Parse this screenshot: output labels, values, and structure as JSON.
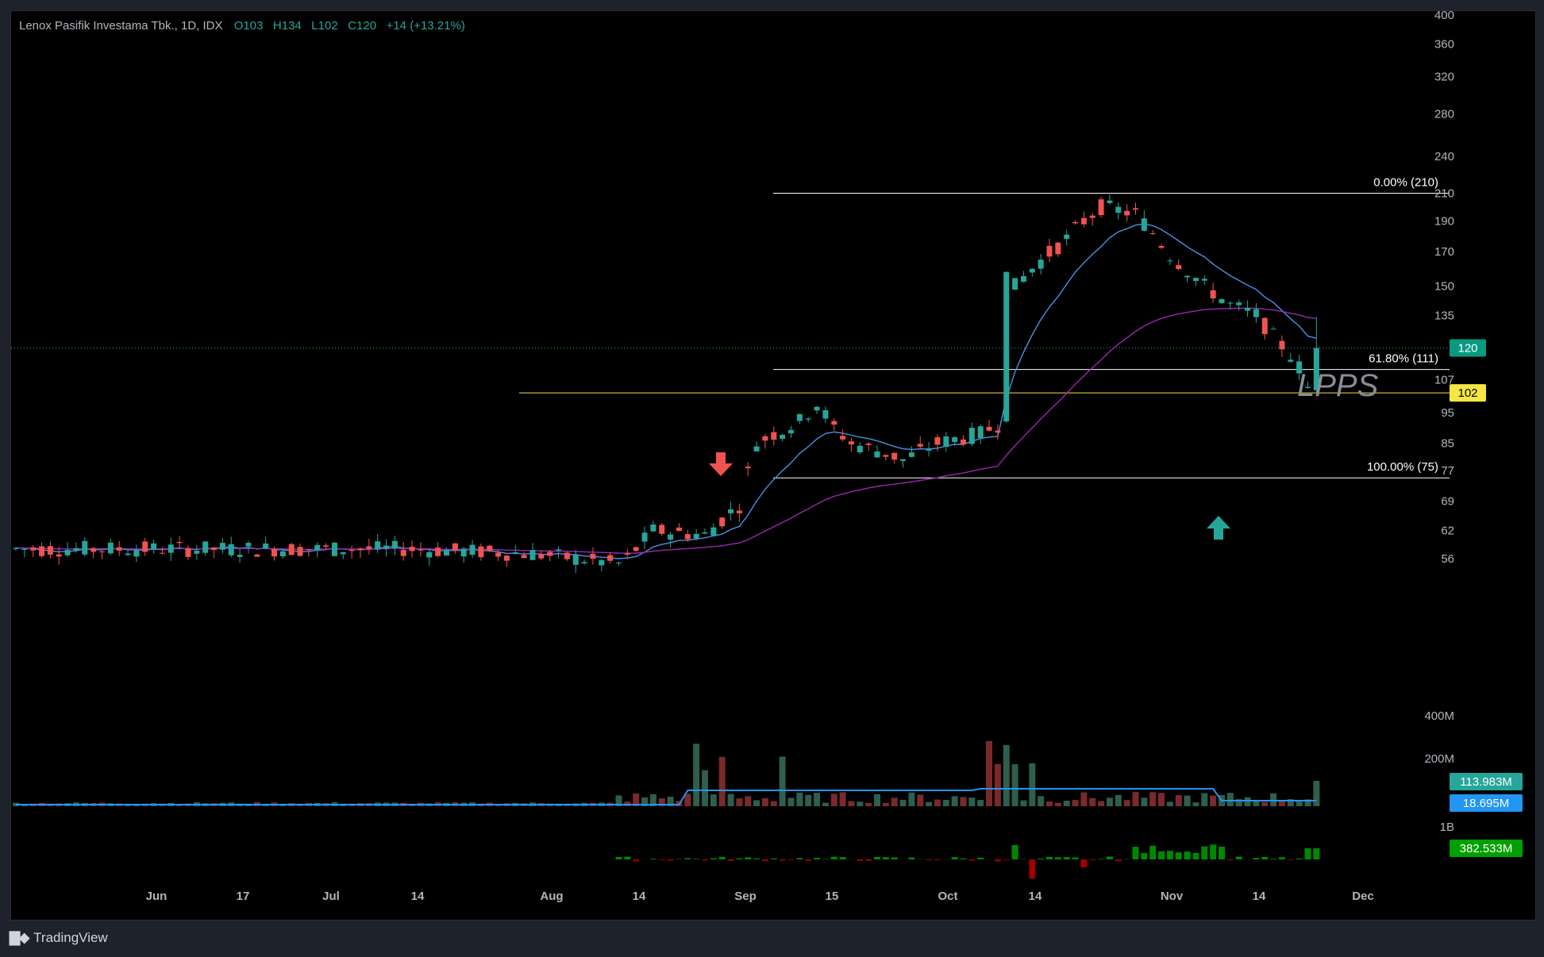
{
  "header": {
    "symbol": "Lenox Pasifik Investama Tbk., 1D, IDX",
    "open_label": "O",
    "open": "103",
    "high_label": "H",
    "high": "134",
    "low_label": "L",
    "low": "102",
    "close_label": "C",
    "close": "120",
    "change": "+14 (+13.21%)"
  },
  "footer": {
    "brand": "TradingView",
    "logo_icon": "tradingview-logo-icon"
  },
  "colors": {
    "up": "#26a69a",
    "down": "#ef5350",
    "ema_short": "#4a90e2",
    "ema_long": "#9c27b0",
    "support": "#c9b037",
    "fib": "#ffffff",
    "vol_up": "#2e5e4e",
    "vol_down": "#7a2a2a",
    "vol_ma": "#2196f3",
    "flow_up": "#008800",
    "flow_down": "#a00000"
  },
  "chart_data": {
    "type": "candlestick",
    "price_axis": {
      "scale": "log",
      "range": [
        50,
        400
      ],
      "ticks": [
        400,
        360,
        320,
        280,
        240,
        210,
        190,
        170,
        150,
        135,
        120,
        107,
        95,
        85,
        77,
        69,
        62,
        56
      ]
    },
    "x_axis": {
      "ticks": [
        "Jun",
        "17",
        "Jul",
        "14",
        "Aug",
        "14",
        "Sep",
        "15",
        "Oct",
        "14",
        "Nov",
        "14",
        "Dec"
      ]
    },
    "last_price": {
      "value": "120",
      "color": "#089981"
    },
    "support_line": {
      "value": "102",
      "color": "#f5e642"
    },
    "fib_levels": [
      {
        "label": "0.00% (210)",
        "price": 210
      },
      {
        "label": "61.80% (111)",
        "price": 111
      },
      {
        "label": "100.00% (75)",
        "price": 75
      }
    ],
    "annotations": {
      "text": "LPPS",
      "sell_arrow": "arrow-down-icon",
      "buy_arrow": "arrow-up-icon"
    },
    "volume_axis": {
      "ticks": [
        "400M",
        "200M"
      ]
    },
    "volume_badges": [
      {
        "value": "113.983M",
        "color": "#26a69a"
      },
      {
        "value": "18.695M",
        "color": "#2196f3"
      }
    ],
    "flow_axis": {
      "ticks": [
        "1B"
      ]
    },
    "flow_badge": {
      "value": "382.533M",
      "color": "#00a000"
    },
    "candles_summary": [
      {
        "period": "Jun–Jul",
        "range": [
          53,
          62
        ]
      },
      {
        "period": "early Aug",
        "low": 53
      },
      {
        "period": "late Aug",
        "high": 100
      },
      {
        "period": "early Sep",
        "low": 75
      },
      {
        "period": "early Oct",
        "high": 210
      },
      {
        "period": "early Nov",
        "open": 103,
        "high": 134,
        "low": 102,
        "close": 120
      }
    ]
  }
}
